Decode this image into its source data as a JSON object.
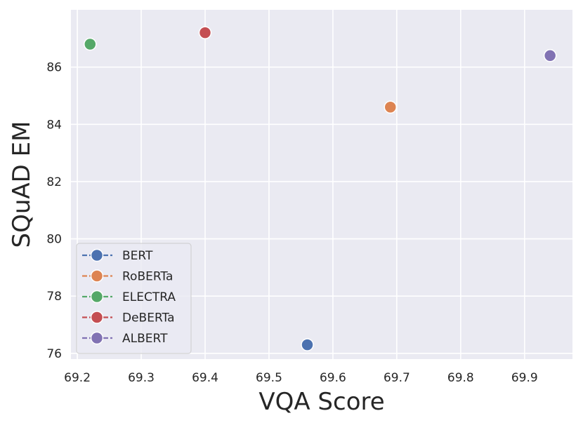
{
  "chart_data": {
    "type": "scatter",
    "title": "",
    "xlabel": "VQA Score",
    "ylabel": "SQuAD EM",
    "xlim": [
      69.19,
      69.975
    ],
    "ylim": [
      75.8,
      88.0
    ],
    "xticks": [
      69.2,
      69.3,
      69.4,
      69.5,
      69.6,
      69.7,
      69.8,
      69.9
    ],
    "yticks": [
      76,
      78,
      80,
      82,
      84,
      86
    ],
    "grid": true,
    "legend_position": "lower-left",
    "series": [
      {
        "name": "BERT",
        "color": "#4c72b0",
        "x": 69.56,
        "y": 76.3
      },
      {
        "name": "RoBERTa",
        "color": "#dd8452",
        "x": 69.69,
        "y": 84.6
      },
      {
        "name": "ELECTRA",
        "color": "#55a868",
        "x": 69.22,
        "y": 86.8
      },
      {
        "name": "DeBERTa",
        "color": "#c44e52",
        "x": 69.4,
        "y": 87.2
      },
      {
        "name": "ALBERT",
        "color": "#8172b3",
        "x": 69.94,
        "y": 86.4
      }
    ]
  }
}
